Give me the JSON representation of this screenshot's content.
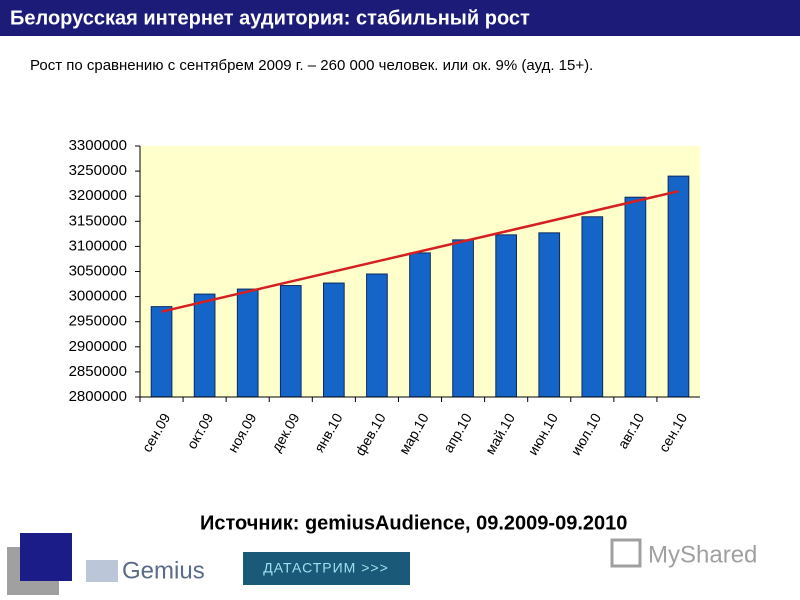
{
  "header": {
    "title": "Белорусская интернет аудитория: стабильный рост"
  },
  "subtitle": "Рост по сравнению с сентябрем 2009 г. – 260 000 человек. или ок. 9% (ауд. 15+).",
  "source": "Источник: gemiusAudience, 09.2009-09.2010",
  "logos": {
    "gemius": "Gemius",
    "datastream": "ДАТАСТРИМ >>>",
    "myshared": "MyShared"
  },
  "chart_data": {
    "type": "bar",
    "categories": [
      "сен.09",
      "окт.09",
      "ноя.09",
      "дек.09",
      "янв.10",
      "фев.10",
      "мар.10",
      "апр.10",
      "май.10",
      "июн.10",
      "июл.10",
      "авг.10",
      "сен.10"
    ],
    "values": [
      2980000,
      3005000,
      3015000,
      3022000,
      3027000,
      3045000,
      3087000,
      3113000,
      3123000,
      3127000,
      3159000,
      3198000,
      3240000
    ],
    "color": "#1565c8",
    "trend": {
      "color": "#d42020",
      "values": [
        2970000,
        3210000
      ]
    },
    "ylim": [
      2800000,
      3300000
    ],
    "yticks": [
      2800000,
      2850000,
      2900000,
      2950000,
      3000000,
      3050000,
      3100000,
      3150000,
      3200000,
      3250000,
      3300000
    ],
    "plot_background": "#ffffcc"
  }
}
